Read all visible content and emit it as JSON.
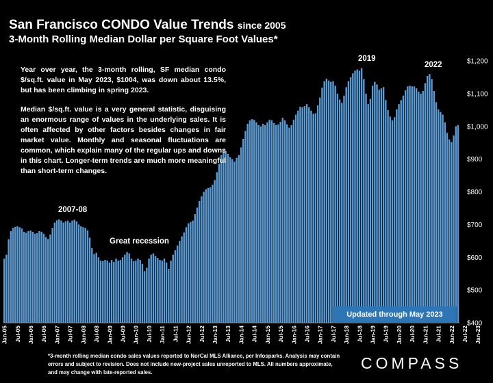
{
  "header": {
    "title_main": "San Francisco CONDO Value Trends",
    "title_suffix": "since 2005",
    "subtitle": "3-Month Rolling Median Dollar per Square Foot Values*"
  },
  "notes": {
    "paragraph1": "Year over year, the 3-month rolling, SF median condo $/sq.ft. value in May 2023, $1004, was down about 13.5%, but has been climbing in spring 2023.",
    "paragraph2": "Median $/sq.ft. value is a very general statistic, disguising an enormous range of values in the underlying sales. It is often affected by other factors besides changes in fair market value. Monthly and seasonal fluctuations are common, which explain many of the regular ups and downs in this chart. Longer-term trends are much more meaningful than short-term changes."
  },
  "annotations": {
    "peak_2007": "2007-08",
    "recession": "Great recession",
    "peak_2019": "2019",
    "peak_2022": "2022"
  },
  "updated_label": "Updated through May 2023",
  "footnote": "*3-month rolling median condo sales values reported to NorCal MLS Alliance, per Infosparks. Analysis may contain errors and subject to revision. Does not include new-project sales unreported to MLS. All numbers approximate, and may change with late-reported sales.",
  "logo": "COMPASS",
  "colors": {
    "bar": "#5b9bd5",
    "bar_dark": "#1f4e79",
    "background": "#000000",
    "updated_box": "#2e75b6"
  },
  "chart_data": {
    "type": "bar",
    "y_axis": {
      "min": 400,
      "max": 1200,
      "ticks": [
        400,
        500,
        600,
        700,
        800,
        900,
        1000,
        1100,
        1200
      ],
      "tick_labels": [
        "$400",
        "$500",
        "$600",
        "$700",
        "$800",
        "$900",
        "$1,000",
        "$1,100",
        "$1,200"
      ],
      "position": "right"
    },
    "x_tick_labels": [
      "Jan-05",
      "Jul-05",
      "Jan-06",
      "Jul-06",
      "Jan-07",
      "Jul-07",
      "Jan-08",
      "Jul-08",
      "Jan-09",
      "Jul-09",
      "Jan-10",
      "Jul-10",
      "Jan-11",
      "Jul-11",
      "Jan-12",
      "Jul-12",
      "Jan-13",
      "Jul-13",
      "Jan-14",
      "Jul-14",
      "Jan-15",
      "Jul-15",
      "Jan-16",
      "Jul-16",
      "Jan-17",
      "Jul-17",
      "Jan-18",
      "Jul-18",
      "Jan-19",
      "Jul-19",
      "Jan-20",
      "Jul-20",
      "Jan-21",
      "Jul-21",
      "Jan-22",
      "Jul-22",
      "Jan-23"
    ],
    "start": "Jan-05",
    "end": "May-23",
    "values": [
      596,
      608,
      655,
      680,
      690,
      693,
      695,
      692,
      688,
      678,
      675,
      680,
      682,
      678,
      672,
      674,
      680,
      678,
      672,
      662,
      656,
      670,
      690,
      706,
      713,
      716,
      712,
      706,
      710,
      712,
      706,
      712,
      715,
      710,
      700,
      695,
      692,
      690,
      682,
      660,
      628,
      610,
      614,
      600,
      590,
      588,
      592,
      590,
      584,
      592,
      586,
      596,
      590,
      592,
      600,
      608,
      616,
      612,
      596,
      588,
      590,
      596,
      592,
      580,
      558,
      568,
      596,
      608,
      612,
      604,
      598,
      592,
      590,
      596,
      584,
      565,
      590,
      608,
      622,
      636,
      650,
      664,
      676,
      692,
      704,
      708,
      712,
      732,
      752,
      772,
      786,
      800,
      808,
      812,
      814,
      822,
      836,
      860,
      886,
      912,
      926,
      924,
      916,
      906,
      900,
      892,
      904,
      912,
      936,
      962,
      986,
      1008,
      1018,
      1022,
      1020,
      1012,
      1004,
      1000,
      1008,
      1004,
      1012,
      1020,
      1018,
      1010,
      1004,
      1006,
      1014,
      1026,
      1018,
      1006,
      996,
      1004,
      1020,
      1036,
      1048,
      1060,
      1058,
      1062,
      1068,
      1058,
      1048,
      1038,
      1040,
      1064,
      1088,
      1118,
      1138,
      1146,
      1140,
      1136,
      1138,
      1124,
      1100,
      1082,
      1072,
      1094,
      1120,
      1138,
      1150,
      1162,
      1170,
      1174,
      1170,
      1178,
      1144,
      1100,
      1068,
      1084,
      1124,
      1136,
      1128,
      1112,
      1116,
      1120,
      1080,
      1050,
      1030,
      1018,
      1028,
      1052,
      1068,
      1080,
      1094,
      1110,
      1122,
      1124,
      1122,
      1122,
      1116,
      1106,
      1100,
      1108,
      1132,
      1154,
      1160,
      1144,
      1108,
      1074,
      1052,
      1044,
      1036,
      1012,
      980,
      960,
      952,
      972,
      1000,
      1004
    ]
  }
}
